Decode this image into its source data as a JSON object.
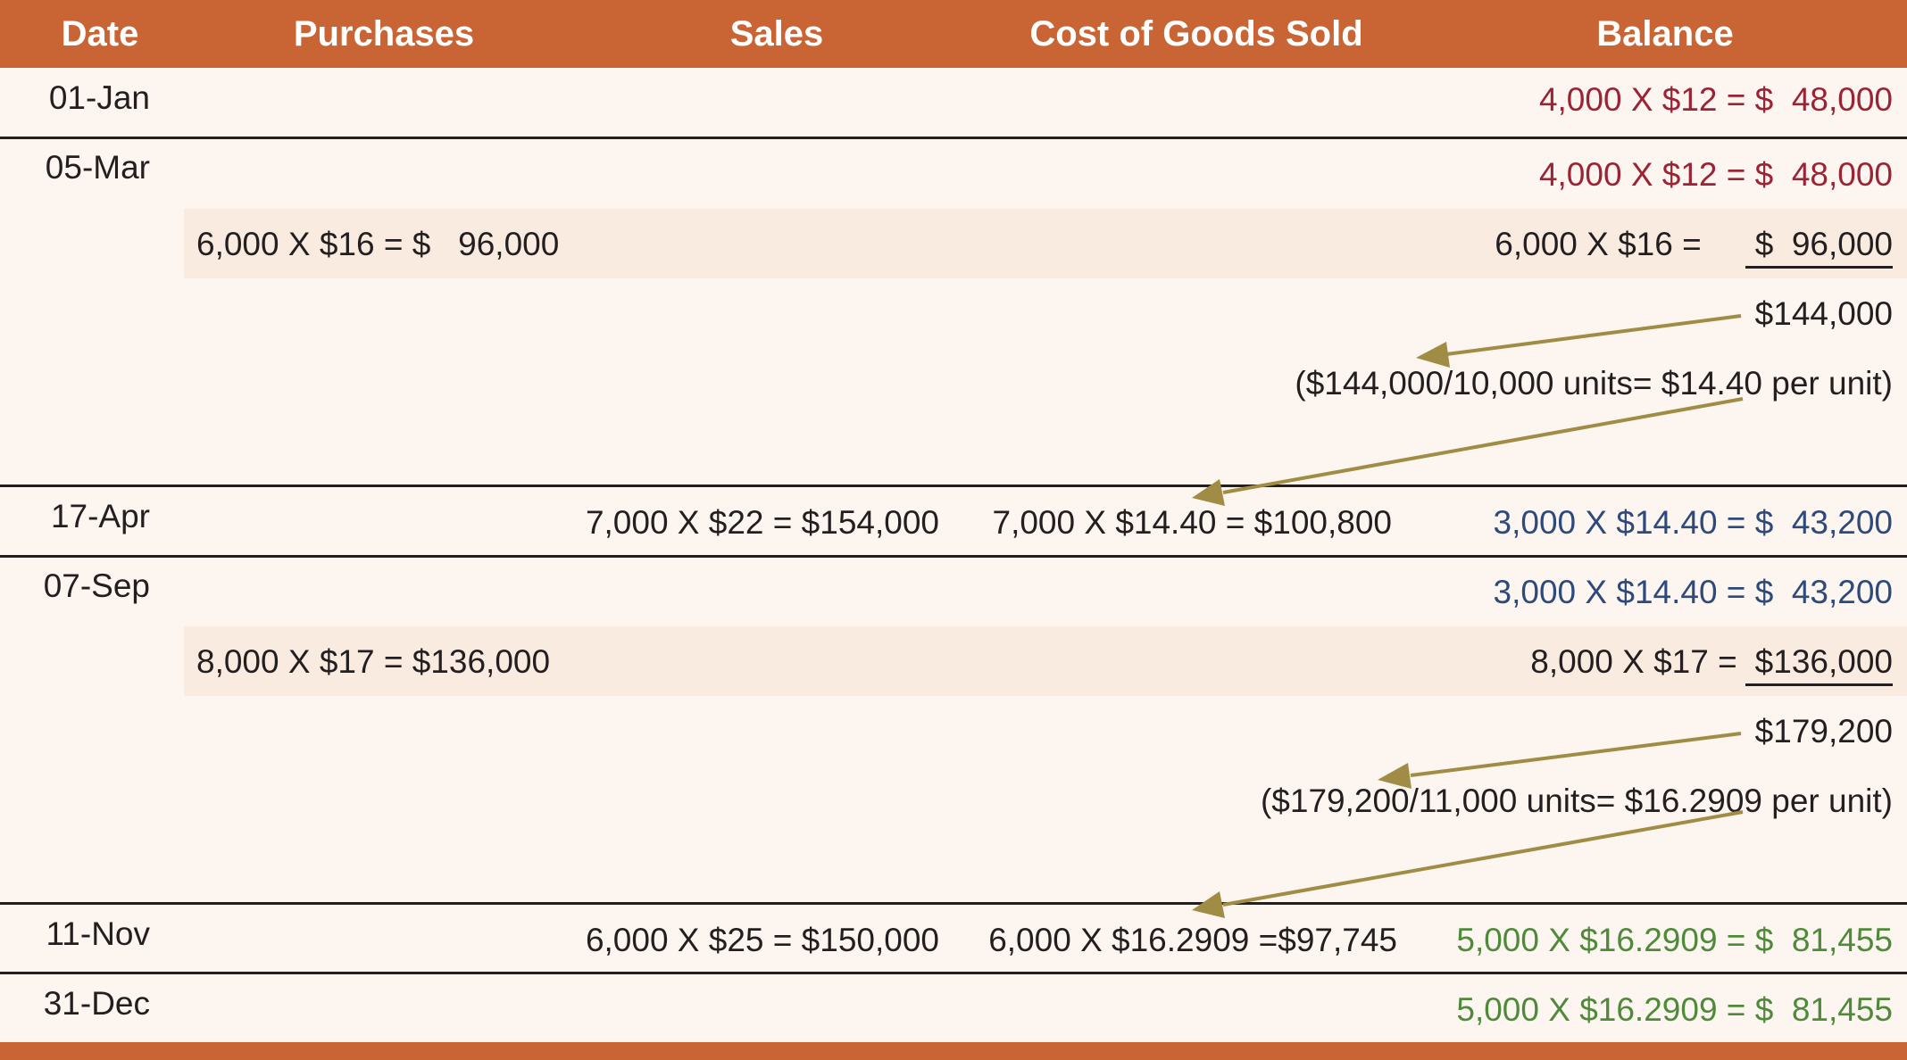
{
  "header": {
    "date": "Date",
    "purchases": "Purchases",
    "sales": "Sales",
    "cogs": "Cost of Goods Sold",
    "balance": "Balance"
  },
  "rows": {
    "jan01": {
      "date": "01-Jan",
      "balance": "4,000 X $12 = $  48,000"
    },
    "mar05": {
      "date": "05-Mar",
      "balance_1": "4,000 X $12 = $  48,000",
      "purchase": "6,000 X $16 = $   96,000",
      "balance_2_prefix": "6,000 X $16 = ",
      "balance_2_amount": "$  96,000",
      "total": "$144,000",
      "note": "($144,000/10,000 units= $14.40 per unit)"
    },
    "apr17": {
      "date": "17-Apr",
      "sales": "7,000 X $22 = $154,000",
      "cogs": "7,000 X $14.40 = $100,800",
      "balance": "3,000 X $14.40 = $  43,200"
    },
    "sep07": {
      "date": "07-Sep",
      "balance_1": "3,000 X $14.40 = $  43,200",
      "purchase": "8,000 X $17 = $136,000",
      "balance_2_prefix": "8,000 X $17 = ",
      "balance_2_amount": "$136,000",
      "total": "$179,200",
      "note": "($179,200/11,000 units= $16.2909 per unit)"
    },
    "nov11": {
      "date": "11-Nov",
      "sales": "6,000 X $25 = $150,000",
      "cogs": "6,000 X $16.2909 =$97,745",
      "balance": "5,000 X $16.2909 = $  81,455"
    },
    "dec31": {
      "date": "31-Dec",
      "balance": "5,000 X $16.2909 = $  81,455"
    }
  },
  "colors": {
    "header_bg": "#c96434",
    "row_bg": "#fdf5ef",
    "band_bg": "#faebe1",
    "arrow": "#a08c45",
    "red_text": "#9b2335",
    "blue_text": "#2e4a7c",
    "green_text": "#4f8a3a"
  }
}
